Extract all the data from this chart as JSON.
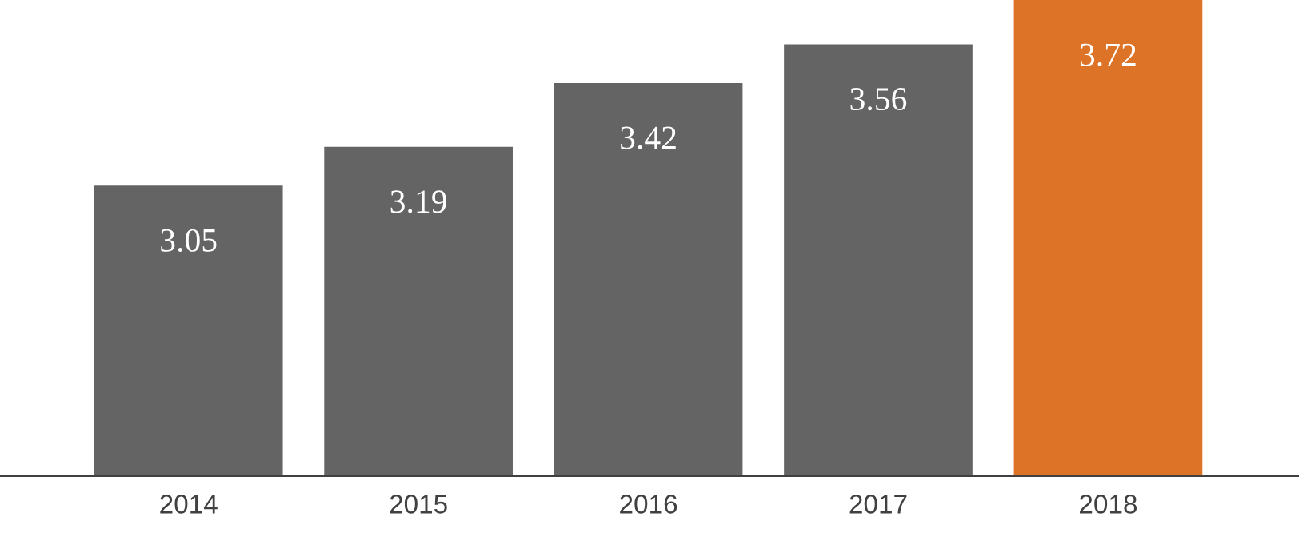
{
  "chart_data": {
    "type": "bar",
    "categories": [
      "2014",
      "2015",
      "2016",
      "2017",
      "2018"
    ],
    "values": [
      3.05,
      3.19,
      3.42,
      3.56,
      3.72
    ],
    "colors": [
      "#646464",
      "#646464",
      "#646464",
      "#646464",
      "#dd7326"
    ],
    "ylim": [
      2.0,
      3.72
    ],
    "data_labels": true,
    "tick_labels": "x",
    "grid": false,
    "legend": false
  }
}
